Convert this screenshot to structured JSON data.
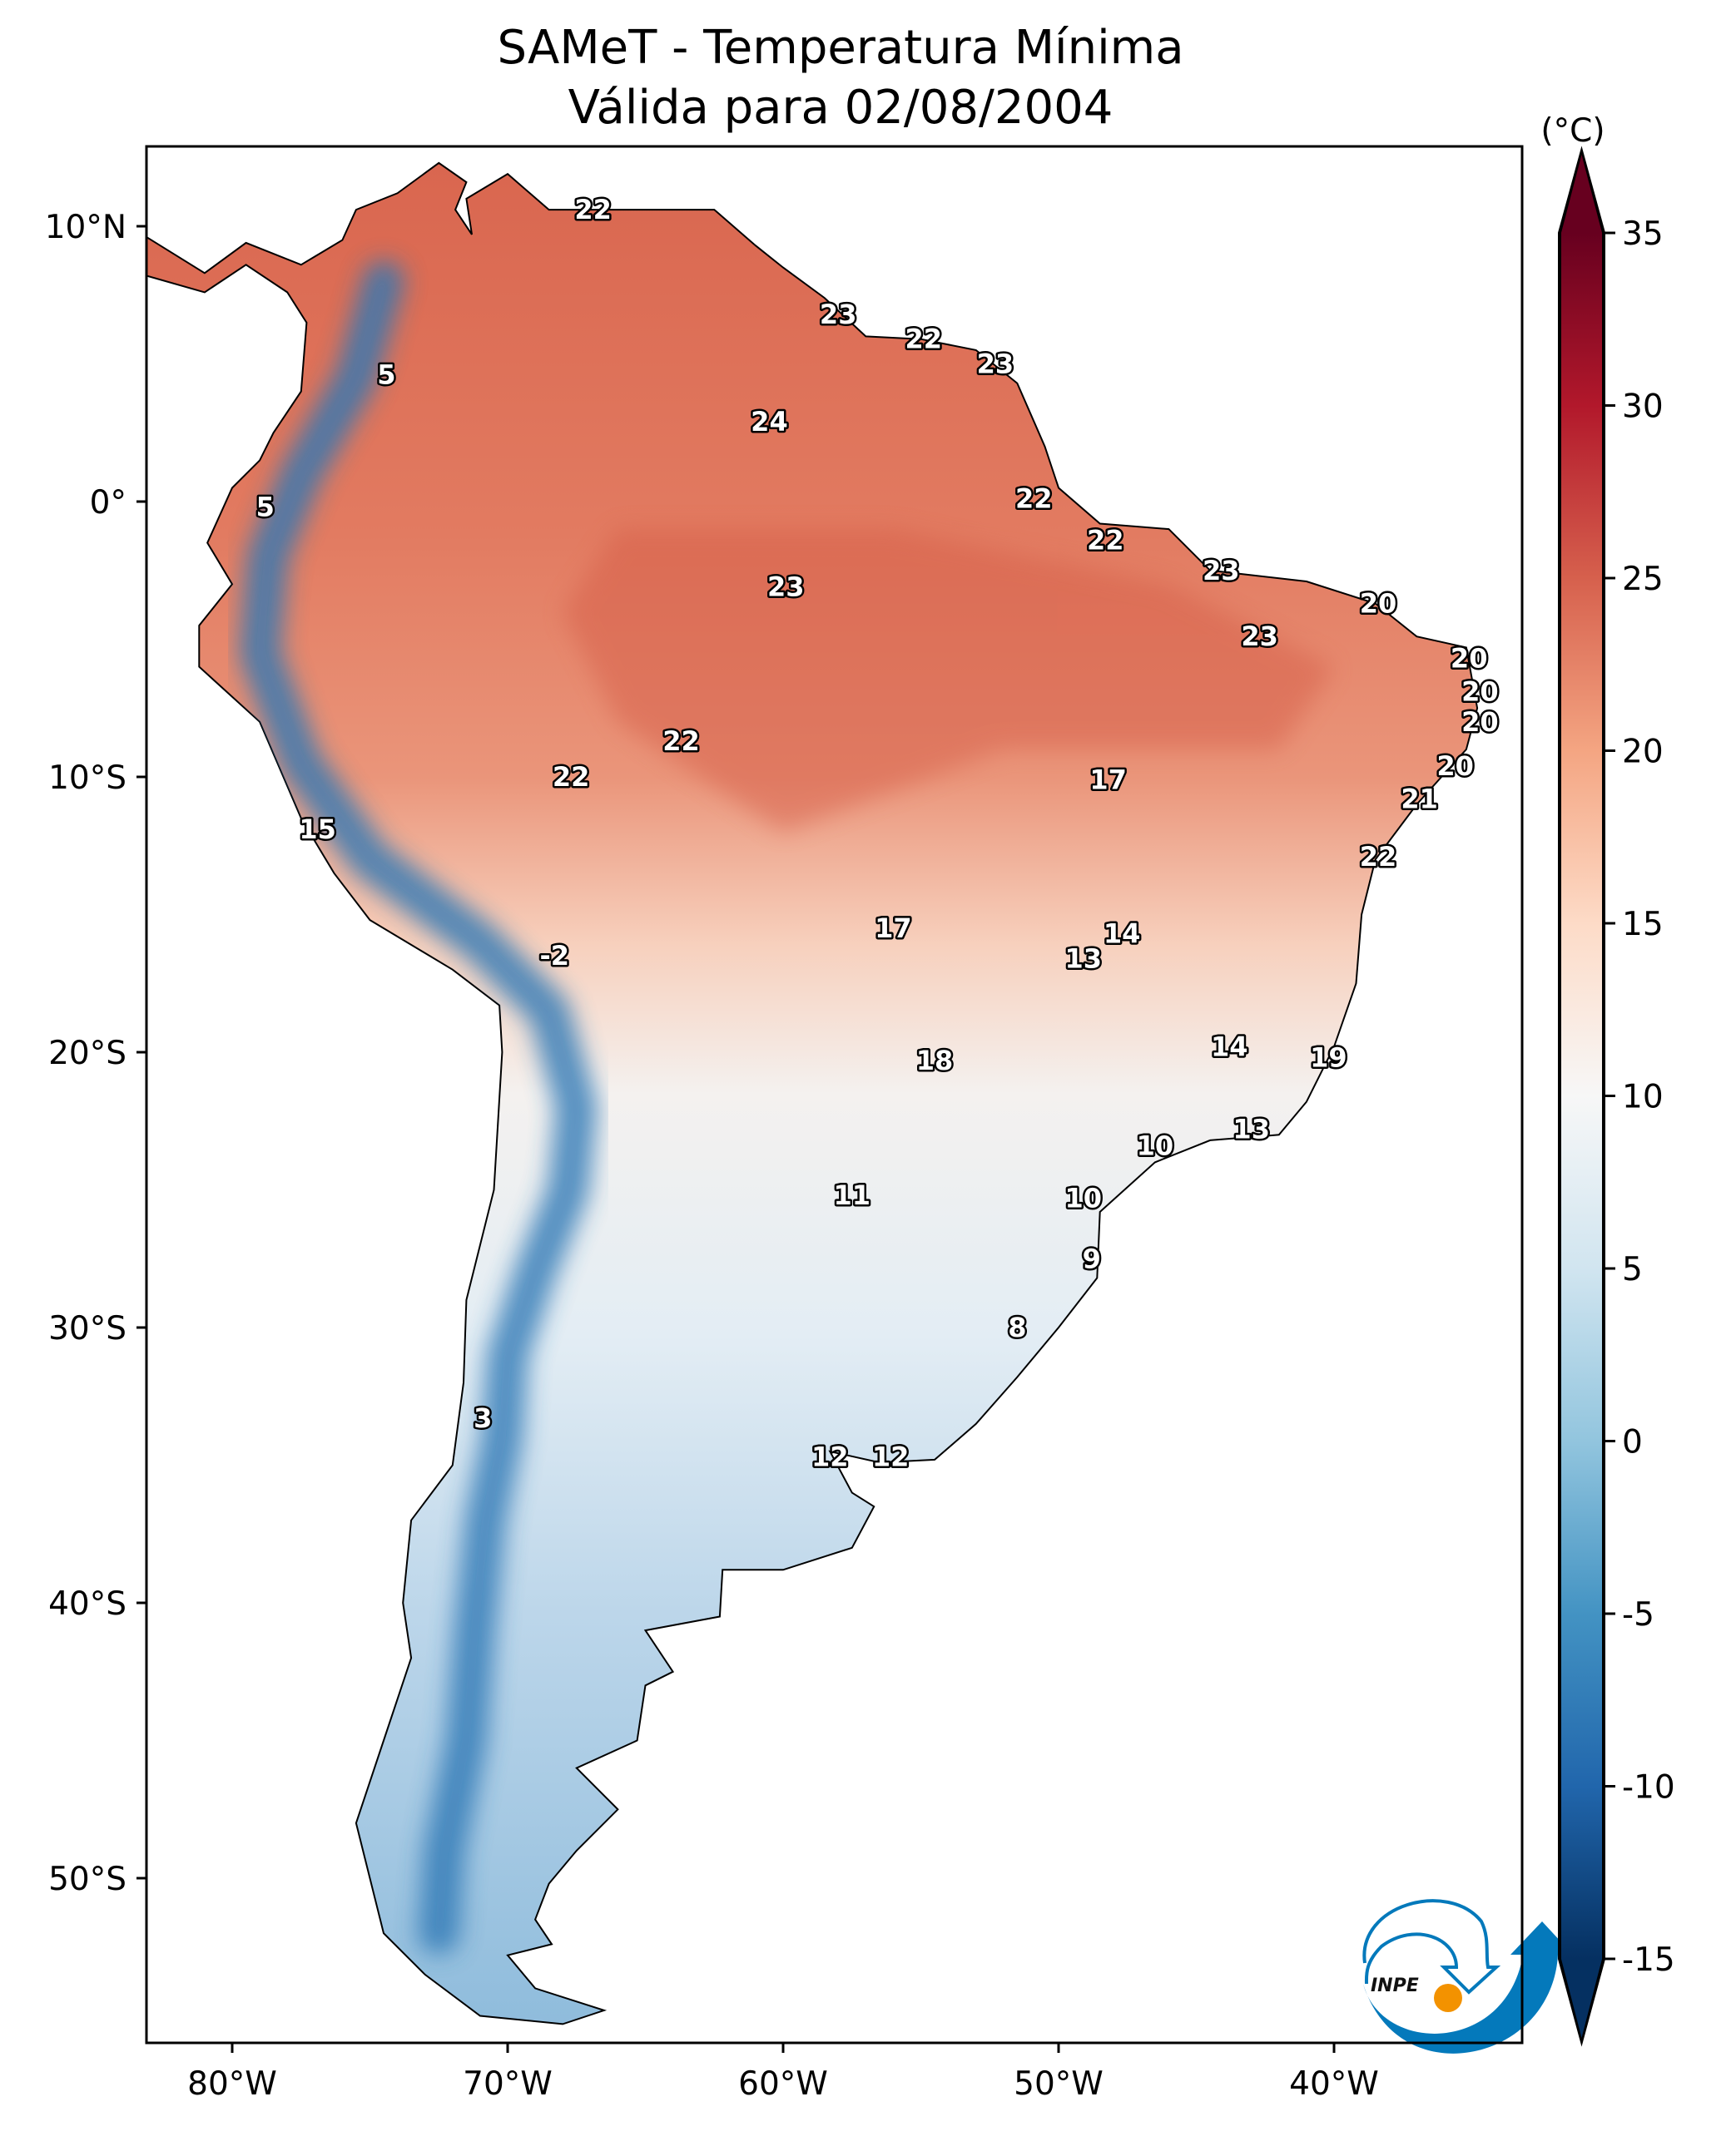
{
  "title": {
    "line1": "SAMeT - Temperatura Mínima",
    "line2": "Válida para 02/08/2004"
  },
  "map": {
    "lon_range": [
      -83.1,
      -33.2
    ],
    "lat_range": [
      -56.0,
      12.9
    ],
    "lon_ticks": [
      {
        "value": -80,
        "label": "80°W"
      },
      {
        "value": -70,
        "label": "70°W"
      },
      {
        "value": -60,
        "label": "60°W"
      },
      {
        "value": -50,
        "label": "50°W"
      },
      {
        "value": -40,
        "label": "40°W"
      }
    ],
    "lat_ticks": [
      {
        "value": 10,
        "label": "10°N"
      },
      {
        "value": 0,
        "label": "0°"
      },
      {
        "value": -10,
        "label": "10°S"
      },
      {
        "value": -20,
        "label": "20°S"
      },
      {
        "value": -30,
        "label": "30°S"
      },
      {
        "value": -40,
        "label": "40°S"
      },
      {
        "value": -50,
        "label": "50°S"
      }
    ],
    "station_labels": [
      {
        "value": "22",
        "lon": -66.9,
        "lat": 10.6
      },
      {
        "value": "23",
        "lon": -58.0,
        "lat": 6.8
      },
      {
        "value": "22",
        "lon": -54.9,
        "lat": 5.9
      },
      {
        "value": "23",
        "lon": -52.3,
        "lat": 5.0
      },
      {
        "value": "5",
        "lon": -74.4,
        "lat": 4.6
      },
      {
        "value": "24",
        "lon": -60.5,
        "lat": 2.9
      },
      {
        "value": "5",
        "lon": -78.8,
        "lat": -0.2
      },
      {
        "value": "22",
        "lon": -50.9,
        "lat": 0.1
      },
      {
        "value": "22",
        "lon": -48.3,
        "lat": -1.4
      },
      {
        "value": "23",
        "lon": -59.9,
        "lat": -3.1
      },
      {
        "value": "23",
        "lon": -44.1,
        "lat": -2.5
      },
      {
        "value": "20",
        "lon": -38.4,
        "lat": -3.7
      },
      {
        "value": "23",
        "lon": -42.7,
        "lat": -4.9
      },
      {
        "value": "20",
        "lon": -35.1,
        "lat": -5.7
      },
      {
        "value": "20",
        "lon": -34.7,
        "lat": -6.9
      },
      {
        "value": "20",
        "lon": -34.7,
        "lat": -8.0
      },
      {
        "value": "22",
        "lon": -63.7,
        "lat": -8.7
      },
      {
        "value": "20",
        "lon": -35.6,
        "lat": -9.6
      },
      {
        "value": "22",
        "lon": -67.7,
        "lat": -10.0
      },
      {
        "value": "17",
        "lon": -48.2,
        "lat": -10.1
      },
      {
        "value": "21",
        "lon": -36.9,
        "lat": -10.8
      },
      {
        "value": "15",
        "lon": -76.9,
        "lat": -11.9
      },
      {
        "value": "22",
        "lon": -38.4,
        "lat": -12.9
      },
      {
        "value": "17",
        "lon": -56.0,
        "lat": -15.5
      },
      {
        "value": "14",
        "lon": -47.7,
        "lat": -15.7
      },
      {
        "value": "-2",
        "lon": -68.3,
        "lat": -16.5
      },
      {
        "value": "13",
        "lon": -49.1,
        "lat": -16.6
      },
      {
        "value": "14",
        "lon": -43.8,
        "lat": -19.8
      },
      {
        "value": "19",
        "lon": -40.2,
        "lat": -20.2
      },
      {
        "value": "18",
        "lon": -54.5,
        "lat": -20.3
      },
      {
        "value": "13",
        "lon": -43.0,
        "lat": -22.8
      },
      {
        "value": "10",
        "lon": -46.5,
        "lat": -23.4
      },
      {
        "value": "11",
        "lon": -57.5,
        "lat": -25.2
      },
      {
        "value": "10",
        "lon": -49.1,
        "lat": -25.3
      },
      {
        "value": "9",
        "lon": -48.8,
        "lat": -27.5
      },
      {
        "value": "8",
        "lon": -51.5,
        "lat": -30.0
      },
      {
        "value": "3",
        "lon": -70.9,
        "lat": -33.3
      },
      {
        "value": "12",
        "lon": -58.3,
        "lat": -34.7
      },
      {
        "value": "12",
        "lon": -56.1,
        "lat": -34.7
      }
    ]
  },
  "colorbar": {
    "unit": "(°C)",
    "range": [
      -15,
      35
    ],
    "ticks": [
      35,
      30,
      25,
      20,
      15,
      10,
      5,
      0,
      -5,
      -10,
      -15
    ],
    "colors": [
      "#053061",
      "#2166ac",
      "#4393c3",
      "#92c5de",
      "#d1e5f0",
      "#f7f7f7",
      "#fddbc7",
      "#f4a582",
      "#d6604d",
      "#b2182b",
      "#67001f"
    ]
  },
  "logo": {
    "text": "INPE",
    "blue": "#0479bb",
    "orange": "#f39200"
  }
}
